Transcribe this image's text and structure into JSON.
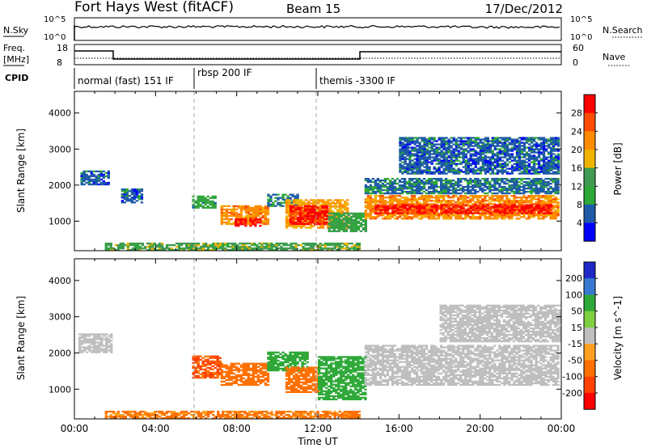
{
  "header": {
    "station": "Fort Hays West (fitACF)",
    "beam": "Beam 15",
    "date": "17/Dec/2012"
  },
  "noise_panel": {
    "left_label": "N.Sky",
    "right_label": "N.Search",
    "ticks_left": [
      "10^5",
      "10^0"
    ],
    "ticks_right": [
      "10^5",
      "10^0"
    ]
  },
  "freq_panel": {
    "label_line1": "Freq.",
    "label_line2": "[MHz]",
    "ticks_left": [
      "18",
      "8"
    ],
    "ticks_right": [
      "60",
      "0"
    ],
    "right_label": "Nave"
  },
  "cpid_panel": {
    "label": "CPID",
    "segments": [
      "normal (fast) 151 IF",
      "rbsp 200 IF",
      "themis -3300 IF"
    ]
  },
  "xaxis": {
    "label": "Time UT",
    "ticks": [
      "00:00",
      "04:00",
      "08:00",
      "12:00",
      "16:00",
      "20:00",
      "00:00"
    ]
  },
  "panels": [
    {
      "ylabel": "Slant Range [km]",
      "yticks": [
        "4000",
        "3000",
        "2000",
        "1000"
      ],
      "colorbar": {
        "label": "Power [dB]",
        "ticks": [
          "28",
          "24",
          "20",
          "16",
          "12",
          "8",
          "4"
        ],
        "colors": [
          "#ff0000",
          "#ff4c00",
          "#ff8c00",
          "#f0b400",
          "#3f9b52",
          "#2ea838",
          "#1e5aa8",
          "#0000ff"
        ]
      }
    },
    {
      "ylabel": "Slant Range [km]",
      "yticks": [
        "4000",
        "3000",
        "2000",
        "1000"
      ],
      "colorbar": {
        "label": "Velocity [m s^-1]",
        "ticks": [
          "200",
          "100",
          "50",
          "15",
          "-15",
          "-50",
          "-100",
          "-200"
        ],
        "colors": [
          "#1e28c8",
          "#3878d0",
          "#2ea838",
          "#7ed040",
          "#bfbfbf",
          "#ffa020",
          "#ff7000",
          "#ff4000",
          "#ff0000"
        ]
      }
    }
  ],
  "chart_data": [
    {
      "type": "heatmap",
      "title": "Fort Hays West (fitACF) Beam 15 17/Dec/2012",
      "xlabel": "Time UT",
      "ylabel": "Slant Range [km]",
      "xlim": [
        0,
        24
      ],
      "ylim": [
        180,
        4600
      ],
      "colorbar_label": "Power [dB]",
      "clim": [
        0,
        32
      ],
      "blobs": [
        {
          "t0": 0.3,
          "t1": 1.7,
          "r0": 2000,
          "r1": 2400,
          "value": 6
        },
        {
          "t0": 2.3,
          "t1": 3.3,
          "r0": 1500,
          "r1": 1900,
          "value": 6
        },
        {
          "t0": 5.8,
          "t1": 7.0,
          "r0": 1350,
          "r1": 1700,
          "value": 10
        },
        {
          "t0": 7.2,
          "t1": 9.5,
          "r0": 900,
          "r1": 1400,
          "value": 22
        },
        {
          "t0": 7.9,
          "t1": 9.2,
          "r0": 850,
          "r1": 1050,
          "value": 30
        },
        {
          "t0": 9.5,
          "t1": 11.0,
          "r0": 1400,
          "r1": 1750,
          "value": 8
        },
        {
          "t0": 10.4,
          "t1": 13.5,
          "r0": 800,
          "r1": 1600,
          "value": 20
        },
        {
          "t0": 10.6,
          "t1": 12.4,
          "r0": 900,
          "r1": 1400,
          "value": 29
        },
        {
          "t0": 12.5,
          "t1": 14.3,
          "r0": 700,
          "r1": 1200,
          "value": 12
        },
        {
          "t0": 14.3,
          "t1": 23.9,
          "r0": 1050,
          "r1": 1700,
          "value": 22
        },
        {
          "t0": 14.8,
          "t1": 23.5,
          "r0": 1200,
          "r1": 1450,
          "value": 29
        },
        {
          "t0": 14.3,
          "t1": 23.9,
          "r0": 1750,
          "r1": 2200,
          "value": 7
        },
        {
          "t0": 16.0,
          "t1": 23.9,
          "r0": 2300,
          "r1": 3300,
          "value": 6
        },
        {
          "t0": 1.5,
          "t1": 14.0,
          "r0": 180,
          "r1": 380,
          "value": 14
        }
      ]
    },
    {
      "type": "heatmap",
      "xlabel": "Time UT",
      "ylabel": "Slant Range [km]",
      "xlim": [
        0,
        24
      ],
      "ylim": [
        180,
        4600
      ],
      "colorbar_label": "Velocity [m s^-1]",
      "clim": [
        -250,
        250
      ],
      "blobs": [
        {
          "t0": 0.2,
          "t1": 1.8,
          "r0": 2000,
          "r1": 2500,
          "value": 0
        },
        {
          "t0": 5.8,
          "t1": 7.2,
          "r0": 1300,
          "r1": 1900,
          "value": -80
        },
        {
          "t0": 7.2,
          "t1": 9.5,
          "r0": 1100,
          "r1": 1700,
          "value": -55
        },
        {
          "t0": 9.5,
          "t1": 11.5,
          "r0": 1500,
          "r1": 2000,
          "value": 60
        },
        {
          "t0": 10.4,
          "t1": 12.0,
          "r0": 900,
          "r1": 1600,
          "value": -60
        },
        {
          "t0": 12.0,
          "t1": 14.3,
          "r0": 700,
          "r1": 1900,
          "value": 60
        },
        {
          "t0": 14.3,
          "t1": 23.9,
          "r0": 1100,
          "r1": 2200,
          "value": 0
        },
        {
          "t0": 18.0,
          "t1": 23.9,
          "r0": 2300,
          "r1": 3300,
          "value": 0
        },
        {
          "t0": 1.5,
          "t1": 14.0,
          "r0": 180,
          "r1": 380,
          "value": -40
        }
      ]
    }
  ]
}
